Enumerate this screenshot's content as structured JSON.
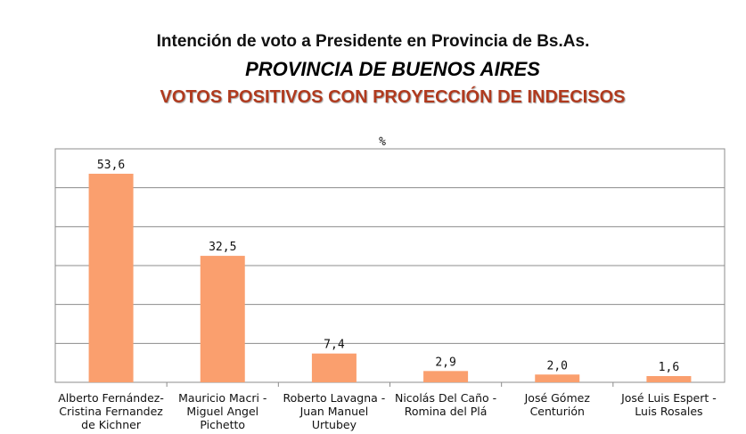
{
  "colors": {
    "bar": "#fa9f6e",
    "grid": "#8c8c8c",
    "subtitle": "#b03a1e"
  },
  "chart_data": {
    "type": "bar",
    "title": "Intención de voto a Presidente en Provincia de Bs.As.",
    "subtitle": "PROVINCIA DE BUENOS AIRES",
    "subtitle2": "VOTOS POSITIVOS CON PROYECCIÓN DE INDECISOS",
    "ylabel": "%",
    "ylim": [
      0,
      60
    ],
    "grid": true,
    "categories": [
      [
        "Alberto Fernández-",
        "Cristina Fernandez",
        "de Kichner"
      ],
      [
        "Mauricio Macri -",
        "Miguel Angel",
        "Pichetto"
      ],
      [
        "Roberto Lavagna -",
        "Juan Manuel",
        "Urtubey"
      ],
      [
        "Nicolás Del Caño -",
        "Romina del Plá"
      ],
      [
        "José Gómez",
        "Centurión"
      ],
      [
        "José Luis Espert -",
        "Luis Rosales"
      ]
    ],
    "values": [
      53.6,
      32.5,
      7.4,
      2.9,
      2.0,
      1.6
    ],
    "value_labels": [
      "53,6",
      "32,5",
      "7,4",
      "2,9",
      "2,0",
      "1,6"
    ]
  }
}
